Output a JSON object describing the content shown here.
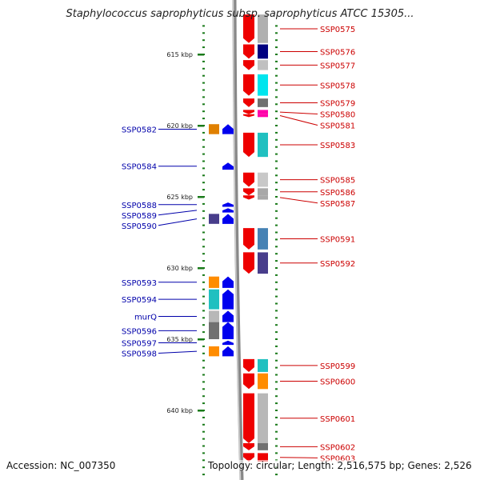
{
  "title": "Staphylococcus saprophyticus subsp. saprophyticus ATCC 15305...",
  "footer": {
    "accession": "Accession: NC_007350",
    "summary": "Topology: circular; Length: 2,516,575 bp; Genes: 2,526"
  },
  "colors": {
    "forward_label": "#cc0000",
    "reverse_label": "#0000aa",
    "tick": "#1a7a1a",
    "backbone": "#888888",
    "forward_arrow": "#ee0000",
    "reverse_arrow": "#0000ee"
  },
  "diagram": {
    "scale_labels": [
      {
        "label": "615 kbp",
        "kbp": 615
      },
      {
        "label": "620 kbp",
        "kbp": 620
      },
      {
        "label": "625 kbp",
        "kbp": 625
      },
      {
        "label": "630 kbp",
        "kbp": 630
      },
      {
        "label": "635 kbp",
        "kbp": 635
      },
      {
        "label": "640 kbp",
        "kbp": 640
      }
    ],
    "forward_genes": [
      {
        "name": "SSP0575",
        "start": 612.2,
        "end": 614.2,
        "cog": "#b0b0b0"
      },
      {
        "name": "SSP0576",
        "start": 614.3,
        "end": 615.3,
        "cog": "#000080"
      },
      {
        "name": "SSP0577",
        "start": 615.4,
        "end": 616.1,
        "cog": "#c0c0c0"
      },
      {
        "name": "SSP0578",
        "start": 616.4,
        "end": 617.9,
        "cog": "#00e5ee"
      },
      {
        "name": "SSP0579",
        "start": 618.1,
        "end": 618.7,
        "cog": "#707070"
      },
      {
        "name": "SSP0580",
        "start": 618.9,
        "end": 619.2,
        "cog": "#ff00aa"
      },
      {
        "name": "SSP0581",
        "start": 619.2,
        "end": 619.4,
        "cog": "#ff00aa"
      },
      {
        "name": "SSP0583",
        "start": 620.5,
        "end": 622.2,
        "cog": "#20c0c0"
      },
      {
        "name": "SSP0585",
        "start": 623.3,
        "end": 624.3,
        "cog": "#c8c8c8"
      },
      {
        "name": "SSP0586",
        "start": 624.4,
        "end": 624.9,
        "cog": "#a8a8a8"
      },
      {
        "name": "SSP0587",
        "start": 624.9,
        "end": 625.2,
        "cog": "#a8a8a8"
      },
      {
        "name": "SSP0591",
        "start": 627.2,
        "end": 628.7,
        "cog": "#4682b4"
      },
      {
        "name": "SSP0592",
        "start": 628.9,
        "end": 630.4,
        "cog": "#483d8b"
      },
      {
        "name": "SSP0599",
        "start": 636.4,
        "end": 637.3,
        "cog": "#20c0c0"
      },
      {
        "name": "SSP0600",
        "start": 637.4,
        "end": 638.5,
        "cog": "#ff8c00"
      },
      {
        "name": "SSP0601",
        "start": 638.8,
        "end": 642.3,
        "cog": "#b8b8b8"
      },
      {
        "name": "SSP0602",
        "start": 642.3,
        "end": 642.8,
        "cog": "#707070"
      },
      {
        "name": "SSP0603",
        "start": 643.0,
        "end": 643.6,
        "cog": "#ee0000"
      }
    ],
    "reverse_genes": [
      {
        "name": "SSP0582",
        "start": 619.9,
        "end": 620.6,
        "cog": "#e08000"
      },
      {
        "name": "SSP0584",
        "start": 622.6,
        "end": 623.1,
        "cog": ""
      },
      {
        "name": "SSP0588",
        "start": 625.4,
        "end": 625.7,
        "cog": ""
      },
      {
        "name": "SSP0589",
        "start": 625.8,
        "end": 626.1,
        "cog": ""
      },
      {
        "name": "SSP0590",
        "start": 626.2,
        "end": 626.9,
        "cog": "#483d8b"
      },
      {
        "name": "SSP0593",
        "start": 630.6,
        "end": 631.4,
        "cog": "#ff8c00"
      },
      {
        "name": "SSP0594",
        "start": 631.5,
        "end": 632.9,
        "cog": "#20c0c0"
      },
      {
        "name": "murQ",
        "start": 633.0,
        "end": 633.8,
        "cog": "#b8b8b8"
      },
      {
        "name": "SSP0596",
        "start": 633.8,
        "end": 635.0,
        "cog": "#707070"
      },
      {
        "name": "SSP0597",
        "start": 635.1,
        "end": 635.4,
        "cog": ""
      },
      {
        "name": "SSP0598",
        "start": 635.5,
        "end": 636.2,
        "cog": "#ff8c00"
      }
    ]
  }
}
